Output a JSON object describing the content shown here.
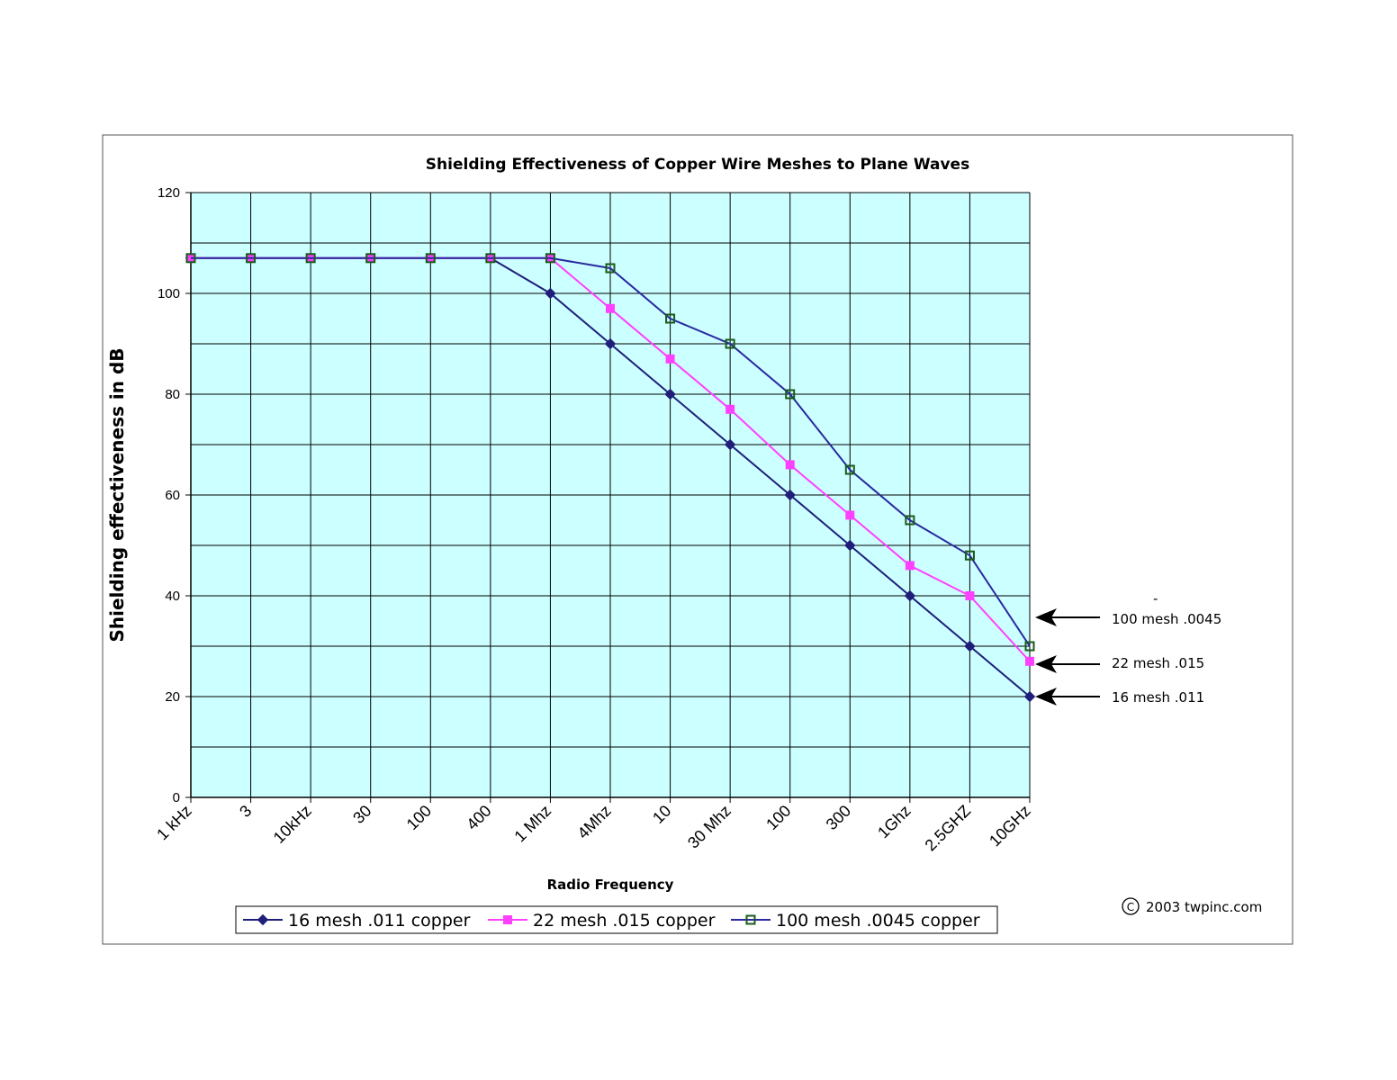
{
  "chart_data": {
    "type": "line",
    "title": "Shielding Effectiveness of Copper Wire Meshes to Plane Waves",
    "xlabel": "Radio Frequency",
    "ylabel": "Shielding effectiveness in dB",
    "categories": [
      "1 kHz",
      "3",
      "10kHz",
      "30",
      "100",
      "400",
      "1 Mhz",
      "4Mhz",
      "10",
      "30 Mhz",
      "100",
      "300",
      "1Ghz",
      "2.5GHZ",
      "10GHz"
    ],
    "yticks": [
      "0",
      "20",
      "40",
      "60",
      "80",
      "100",
      "120"
    ],
    "ylim": [
      0,
      120
    ],
    "grid": true,
    "legend_position": "bottom",
    "series": [
      {
        "name": "16 mesh .011 copper",
        "color": "#1f1f7a",
        "marker": "diamond",
        "values": [
          107,
          107,
          107,
          107,
          107,
          107,
          100,
          90,
          80,
          70,
          60,
          50,
          40,
          30,
          20
        ]
      },
      {
        "name": "22 mesh .015 copper",
        "color": "#ff40ff",
        "marker": "square",
        "values": [
          107,
          107,
          107,
          107,
          107,
          107,
          107,
          97,
          87,
          77,
          66,
          56,
          46,
          40,
          27
        ]
      },
      {
        "name": "100 mesh .0045 copper",
        "color": "#2a2aa0",
        "marker": "open-square",
        "values": [
          107,
          107,
          107,
          107,
          107,
          107,
          107,
          105,
          95,
          90,
          80,
          65,
          55,
          48,
          30
        ]
      }
    ],
    "annotations": [
      {
        "text": "-",
        "series": 2
      },
      {
        "text": "100 mesh .0045",
        "series": 2
      },
      {
        "text": "22 mesh .015",
        "series": 1
      },
      {
        "text": "16 mesh .011",
        "series": 0
      }
    ],
    "copyright": "2003 twpinc.com",
    "plot_background": "#ccffff",
    "marker_edge_open_square": "#1a5a1a"
  }
}
